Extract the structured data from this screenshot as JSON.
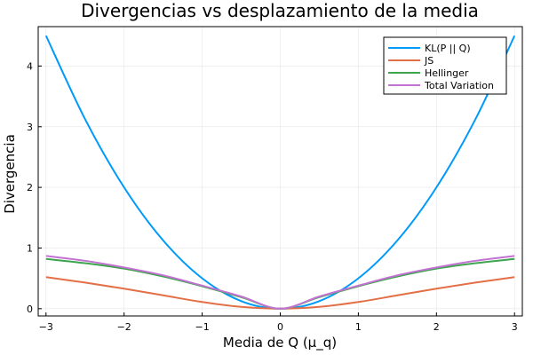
{
  "chart_data": {
    "type": "line",
    "title": "Divergencias vs desplazamiento de la media",
    "xlabel": "Media de Q (μ_q)",
    "ylabel": "Divergencia",
    "xlim": [
      -3.1,
      3.1
    ],
    "ylim": [
      -0.12,
      4.65
    ],
    "xticks": [
      -3,
      -2,
      -1,
      0,
      1,
      2,
      3
    ],
    "xtick_labels": [
      "−3",
      "−2",
      "−1",
      "0",
      "1",
      "2",
      "3"
    ],
    "yticks": [
      0,
      1,
      2,
      3,
      4
    ],
    "ytick_labels": [
      "0",
      "1",
      "2",
      "3",
      "4"
    ],
    "grid": true,
    "legend_position": "top-right",
    "x": [
      -3,
      -2.5,
      -2,
      -1.5,
      -1,
      -0.5,
      0,
      0.5,
      1,
      1.5,
      2,
      2.5,
      3
    ],
    "series": [
      {
        "name": "KL(P || Q)",
        "color": "#009AFA",
        "values": [
          4.5,
          3.125,
          2.0,
          1.125,
          0.5,
          0.125,
          0.0,
          0.125,
          0.5,
          1.125,
          2.0,
          3.125,
          4.5
        ]
      },
      {
        "name": "JS",
        "color": "#E36F47",
        "values": [
          0.52,
          0.43,
          0.33,
          0.22,
          0.11,
          0.03,
          0.0,
          0.03,
          0.11,
          0.22,
          0.33,
          0.43,
          0.52
        ]
      },
      {
        "name": "Hellinger",
        "color": "#3EA44E",
        "values": [
          0.82,
          0.75,
          0.66,
          0.53,
          0.37,
          0.19,
          0.0,
          0.19,
          0.37,
          0.53,
          0.66,
          0.75,
          0.82
        ]
      },
      {
        "name": "Total Variation",
        "color": "#C371D2",
        "values": [
          0.87,
          0.79,
          0.68,
          0.55,
          0.38,
          0.2,
          0.0,
          0.2,
          0.38,
          0.55,
          0.68,
          0.79,
          0.87
        ]
      }
    ]
  }
}
